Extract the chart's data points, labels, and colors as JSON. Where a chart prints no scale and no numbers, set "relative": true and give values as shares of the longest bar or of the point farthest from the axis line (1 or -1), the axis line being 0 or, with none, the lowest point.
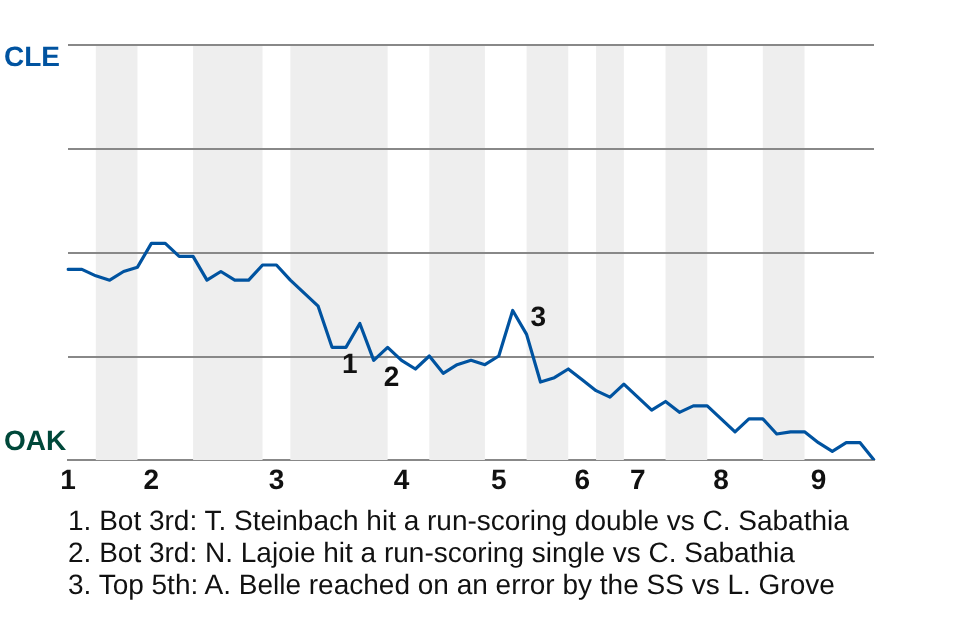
{
  "chart_data": {
    "type": "line",
    "relative": true,
    "categories": [
      "1",
      null,
      null,
      null,
      null,
      null,
      "2",
      null,
      null,
      null,
      null,
      null,
      null,
      null,
      null,
      "3",
      null,
      null,
      null,
      null,
      null,
      null,
      null,
      null,
      "4",
      null,
      null,
      null,
      null,
      null,
      null,
      "5",
      null,
      null,
      null,
      null,
      null,
      "6",
      null,
      null,
      null,
      "7",
      null,
      null,
      null,
      null,
      null,
      "8",
      null,
      null,
      null,
      null,
      null,
      null,
      "9",
      null,
      null,
      null,
      null
    ],
    "series": [
      {
        "color": "#0053a0",
        "values": [
          0.88,
          0.88,
          0.85,
          0.83,
          0.87,
          0.89,
          1,
          1,
          0.94,
          0.94,
          0.83,
          0.87,
          0.83,
          0.83,
          0.9,
          0.9,
          0.83,
          0.77,
          0.71,
          0.52,
          0.52,
          0.63,
          0.46,
          0.52,
          0.46,
          0.42,
          0.48,
          0.4,
          0.44,
          0.46,
          0.44,
          0.48,
          0.69,
          0.58,
          0.36,
          0.38,
          0.42,
          0.37,
          0.32,
          0.29,
          0.35,
          0.29,
          0.23,
          0.27,
          0.22,
          0.25,
          0.25,
          0.19,
          0.13,
          0.19,
          0.19,
          0.12,
          0.13,
          0.13,
          0.08,
          0.04,
          0.08,
          0.08,
          0
        ]
      }
    ],
    "marker": "none",
    "legend": false,
    "ref_lines": [
      {
        "axis": "y",
        "value": 0.48,
        "color": "#888888"
      },
      {
        "axis": "y",
        "value": 0.96,
        "color": "#888888"
      },
      {
        "axis": "y",
        "value": 1.44,
        "color": "#888888"
      },
      {
        "axis": "y",
        "value": 1.92,
        "color": "#888888"
      }
    ],
    "annotations": [
      "CLE",
      "OAK",
      {
        "text": "1",
        "y": 0.52
      },
      {
        "text": "2",
        "y": 0.46
      },
      {
        "text": "3",
        "y": 0.58
      },
      "1. Bot 3rd: T. Steinbach hit a run-scoring double vs C. Sabathia",
      "2. Bot 3rd: N. Lajoie hit a run-scoring single vs C. Sabathia",
      "3. Top 5th: A. Belle reached on an error by the SS vs L. Grove"
    ]
  }
}
